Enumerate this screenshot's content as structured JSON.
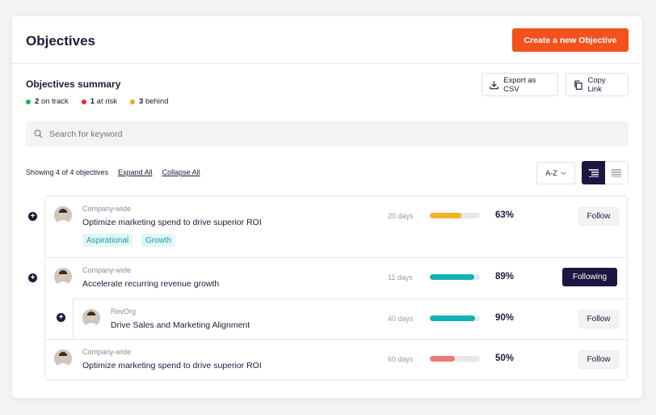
{
  "header": {
    "title": "Objectives",
    "create_label": "Create a new Objective"
  },
  "summary": {
    "title": "Objectives summary",
    "statuses": [
      {
        "count": "2",
        "label": "on track",
        "color": "#1db954"
      },
      {
        "count": "1",
        "label": "at risk",
        "color": "#e5322d"
      },
      {
        "count": "3",
        "label": "behind",
        "color": "#f5a623"
      }
    ]
  },
  "toolbar": {
    "export_label": "Export as CSV",
    "copy_label": "Copy Link"
  },
  "search": {
    "placeholder": "Search for keyword"
  },
  "list_controls": {
    "showing": "Showing 4 of 4 objectives",
    "expand_all": "Expand All",
    "collapse_all": "Collapse All",
    "sort": "A-Z"
  },
  "objectives": [
    {
      "scope": "Company-wide",
      "title": "Optimize marketing spend to drive superior ROI",
      "days": "20 days",
      "progress": 0.63,
      "progress_color": "#f0b429",
      "pct": "63%",
      "follow": "Follow",
      "tags": [
        "Aspirational",
        "Growth"
      ]
    },
    {
      "scope": "Company-wide",
      "title": "Accelerate recurring revenue growth",
      "days": "11 days",
      "progress": 0.89,
      "progress_color": "#14b1b4",
      "pct": "89%",
      "follow": "Following"
    },
    {
      "scope": "RevOrg",
      "title": "Drive Sales and Marketing Alignment",
      "days": "40 days",
      "progress": 0.9,
      "progress_color": "#14b1b4",
      "pct": "90%",
      "follow": "Follow"
    },
    {
      "scope": "Company-wide",
      "title": "Optimize marketing spend to drive superior ROI",
      "days": "60 days",
      "progress": 0.5,
      "progress_color": "#ef7a7a",
      "pct": "50%",
      "follow": "Follow"
    }
  ],
  "icons": {
    "search": "search-icon",
    "export": "download-icon",
    "copy": "copy-icon",
    "chevron": "chevron-down-icon",
    "list_view": "indented-list-icon",
    "flat_view": "flat-list-icon",
    "expand": "plus-circle-icon"
  }
}
